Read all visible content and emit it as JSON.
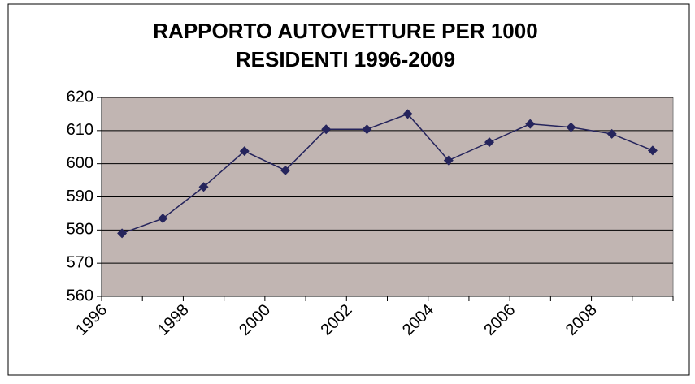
{
  "chart_data": {
    "type": "line",
    "title": [
      "RAPPORTO AUTOVETTURE PER 1000",
      "RESIDENTI 1996-2009"
    ],
    "categories": [
      "1996",
      null,
      "1998",
      null,
      "2000",
      null,
      "2002",
      null,
      "2004",
      null,
      "2006",
      null,
      "2008",
      null
    ],
    "series": [
      {
        "name": null,
        "color": "#25245c",
        "values": [
          579,
          583.5,
          593,
          603.8,
          598,
          610.4,
          610.4,
          615,
          601,
          606.5,
          612,
          611,
          609,
          604
        ]
      }
    ],
    "ylim": [
      560,
      620
    ],
    "yticks": [
      560,
      570,
      580,
      590,
      600,
      610,
      620
    ],
    "grid": true,
    "plot_background": "#c1b5b2"
  }
}
